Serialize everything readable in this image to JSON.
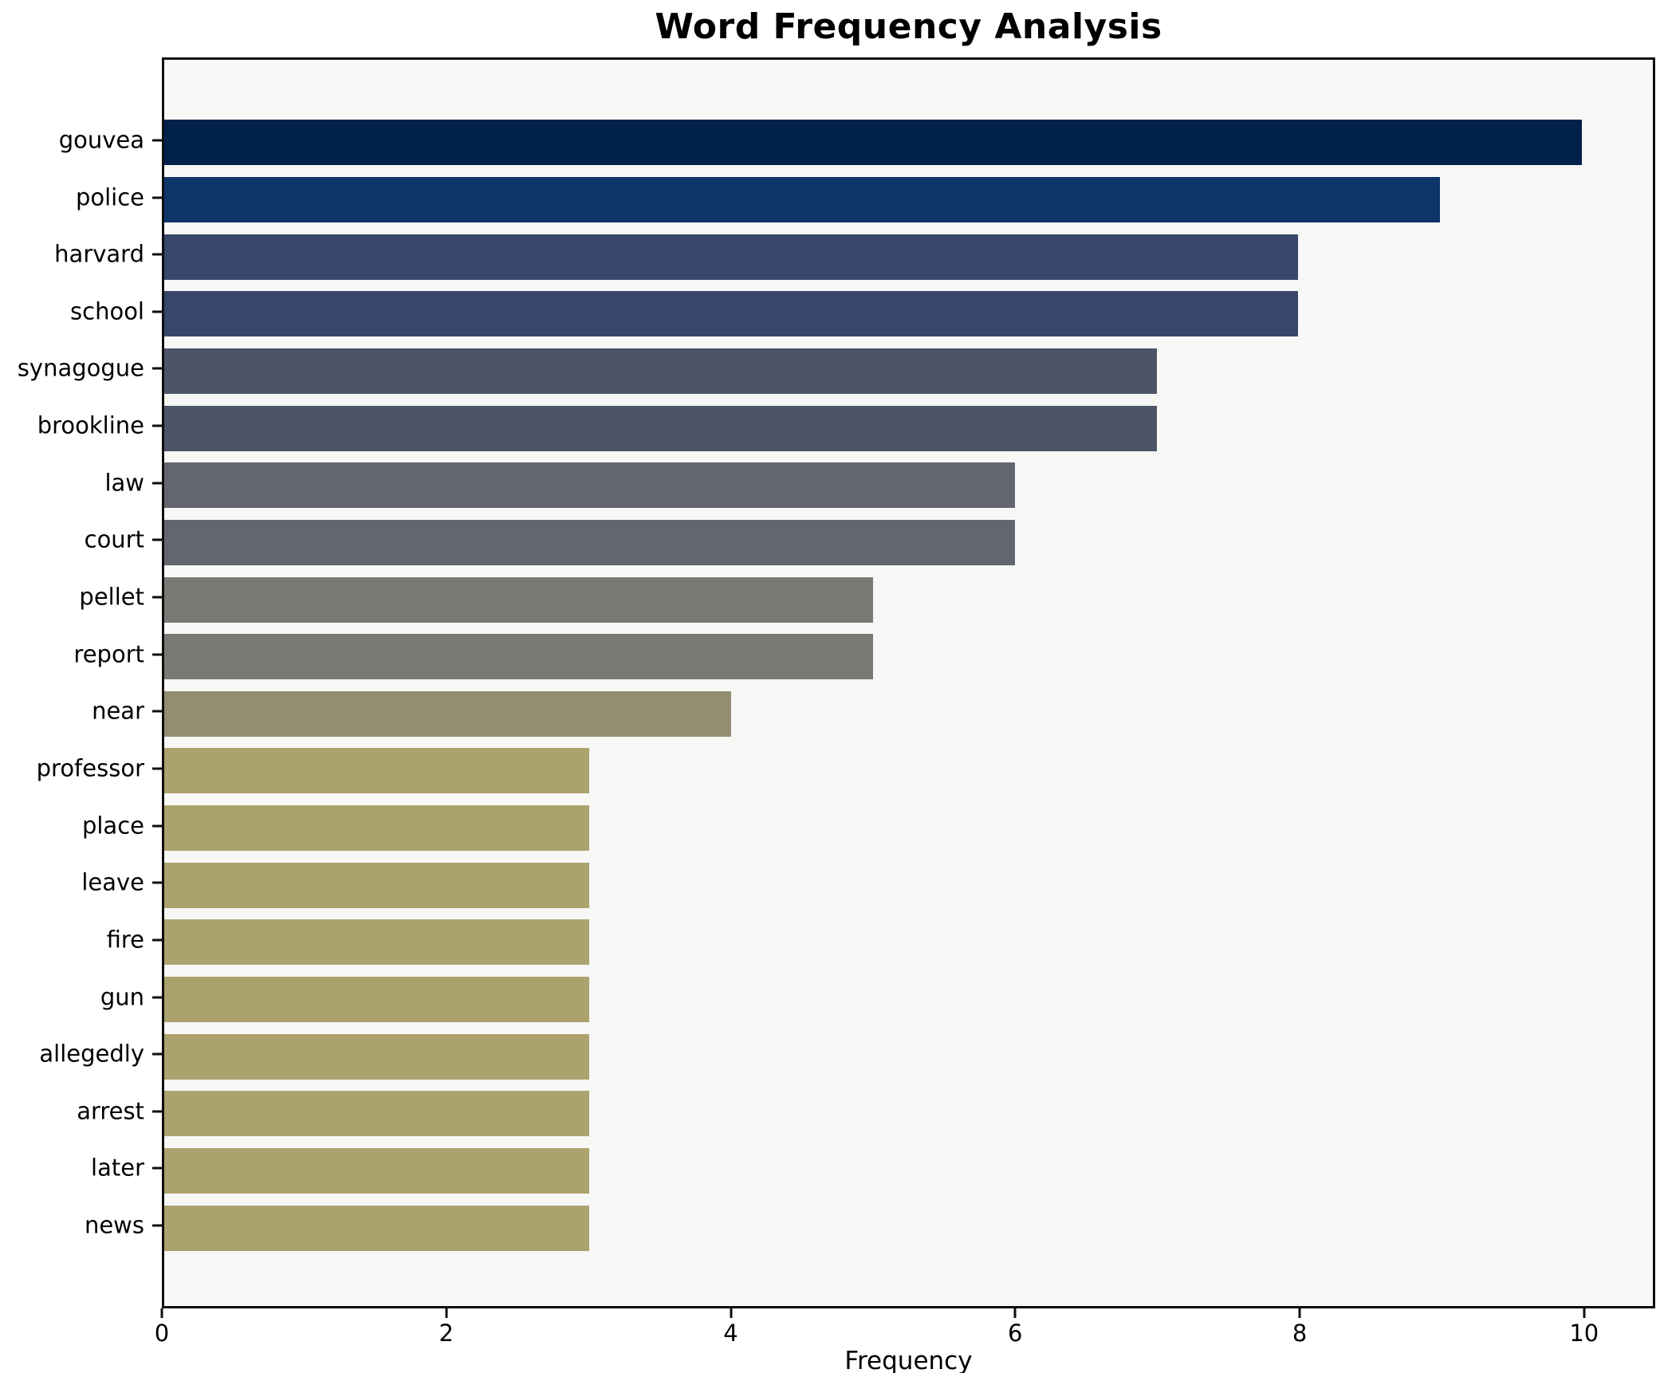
{
  "chart_data": {
    "type": "bar",
    "orientation": "horizontal",
    "title": "Word Frequency Analysis",
    "xlabel": "Frequency",
    "ylabel": "",
    "categories": [
      "gouvea",
      "police",
      "harvard",
      "school",
      "synagogue",
      "brookline",
      "law",
      "court",
      "pellet",
      "report",
      "near",
      "professor",
      "place",
      "leave",
      "fire",
      "gun",
      "allegedly",
      "arrest",
      "later",
      "news"
    ],
    "values": [
      10,
      9,
      8,
      8,
      7,
      7,
      6,
      6,
      5,
      5,
      4,
      3,
      3,
      3,
      3,
      3,
      3,
      3,
      3,
      3
    ],
    "bar_colors": [
      "#01214d",
      "#0d3568",
      "#374669",
      "#374669",
      "#4c5468",
      "#4c5468",
      "#63666f",
      "#63666f",
      "#7a7a75",
      "#7a7a75",
      "#938d72",
      "#aca26e",
      "#aca26e",
      "#aca26e",
      "#aca26e",
      "#aca26e",
      "#aca26e",
      "#aca26e",
      "#aca26e",
      "#aca26e"
    ],
    "x_ticks": [
      0,
      2,
      4,
      6,
      8,
      10
    ],
    "xlim": [
      0,
      10.5
    ],
    "grid": false,
    "legend": "none",
    "plot_background": "#f7f7f5",
    "figure_background": "#ffffff",
    "spine_color": "#0f0f0f",
    "text_color": "#000000"
  }
}
